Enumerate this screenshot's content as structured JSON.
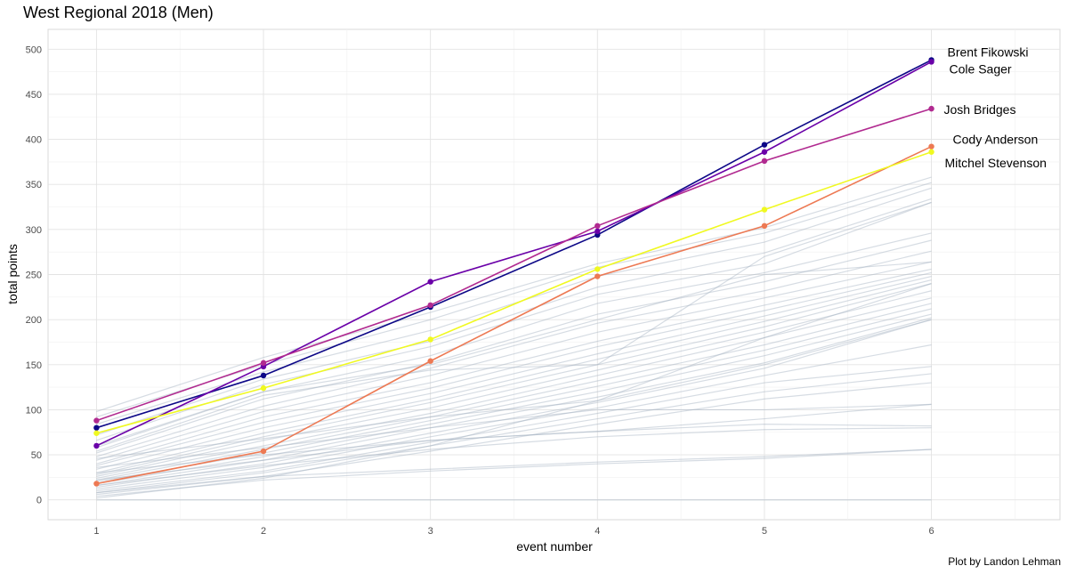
{
  "chart_data": {
    "type": "line",
    "title": "West Regional 2018 (Men)",
    "xlabel": "event number",
    "ylabel": "total points",
    "caption": "Plot by Landon Lehman",
    "x": [
      1,
      2,
      3,
      4,
      5,
      6
    ],
    "xlim": [
      0.71,
      6.77
    ],
    "ylim": [
      -22,
      522
    ],
    "yticks": [
      0,
      50,
      100,
      150,
      200,
      250,
      300,
      350,
      400,
      450,
      500
    ],
    "grid": true,
    "highlighted_series": [
      {
        "name": "Brent Fikowski",
        "color": "#0d0887",
        "values": [
          80,
          138,
          214,
          294,
          394,
          488
        ]
      },
      {
        "name": "Cole Sager",
        "color": "#6a00a8",
        "values": [
          60,
          148,
          242,
          298,
          386,
          486
        ]
      },
      {
        "name": "Josh Bridges",
        "color": "#b12a90",
        "values": [
          88,
          152,
          216,
          304,
          376,
          434
        ]
      },
      {
        "name": "Cody Anderson",
        "color": "#ed7953",
        "values": [
          18,
          54,
          154,
          248,
          304,
          392
        ]
      },
      {
        "name": "Mitchel Stevenson",
        "color": "#f0f921",
        "values": [
          74,
          124,
          178,
          256,
          322,
          386
        ]
      }
    ],
    "background_series_color": "#a3b1c2",
    "background_series": [
      [
        98,
        158,
        208,
        262,
        302,
        358
      ],
      [
        92,
        150,
        200,
        258,
        296,
        352
      ],
      [
        84,
        142,
        188,
        248,
        286,
        346
      ],
      [
        72,
        134,
        176,
        236,
        274,
        334
      ],
      [
        66,
        128,
        170,
        228,
        262,
        330
      ],
      [
        58,
        120,
        160,
        218,
        252,
        296
      ],
      [
        52,
        112,
        152,
        206,
        242,
        288
      ],
      [
        48,
        104,
        146,
        196,
        232,
        276
      ],
      [
        44,
        98,
        138,
        186,
        224,
        264
      ],
      [
        40,
        92,
        130,
        176,
        216,
        256
      ],
      [
        38,
        86,
        124,
        170,
        210,
        252
      ],
      [
        34,
        80,
        118,
        162,
        204,
        248
      ],
      [
        30,
        74,
        112,
        156,
        198,
        244
      ],
      [
        28,
        70,
        108,
        150,
        192,
        240
      ],
      [
        26,
        66,
        102,
        144,
        186,
        232
      ],
      [
        24,
        60,
        96,
        138,
        180,
        224
      ],
      [
        22,
        56,
        92,
        132,
        172,
        218
      ],
      [
        20,
        52,
        88,
        126,
        166,
        212
      ],
      [
        18,
        48,
        84,
        120,
        160,
        206
      ],
      [
        16,
        44,
        80,
        114,
        152,
        202
      ],
      [
        14,
        40,
        74,
        108,
        146,
        200
      ],
      [
        12,
        36,
        70,
        102,
        138,
        172
      ],
      [
        10,
        32,
        64,
        96,
        130,
        148
      ],
      [
        8,
        30,
        60,
        90,
        120,
        140
      ],
      [
        6,
        26,
        54,
        84,
        112,
        130
      ],
      [
        46,
        68,
        92,
        110,
        150,
        200
      ],
      [
        36,
        58,
        80,
        100,
        100,
        106
      ],
      [
        30,
        50,
        66,
        76,
        90,
        106
      ],
      [
        22,
        44,
        66,
        76,
        84,
        82
      ],
      [
        16,
        38,
        56,
        70,
        78,
        80
      ],
      [
        8,
        26,
        34,
        42,
        48,
        56
      ],
      [
        4,
        22,
        32,
        40,
        46,
        56
      ],
      [
        60,
        120,
        150,
        200,
        250,
        264
      ],
      [
        54,
        116,
        144,
        150,
        270,
        330
      ],
      [
        2,
        24,
        60,
        110,
        180,
        240
      ],
      [
        0,
        0,
        0,
        0,
        0,
        0
      ]
    ]
  }
}
